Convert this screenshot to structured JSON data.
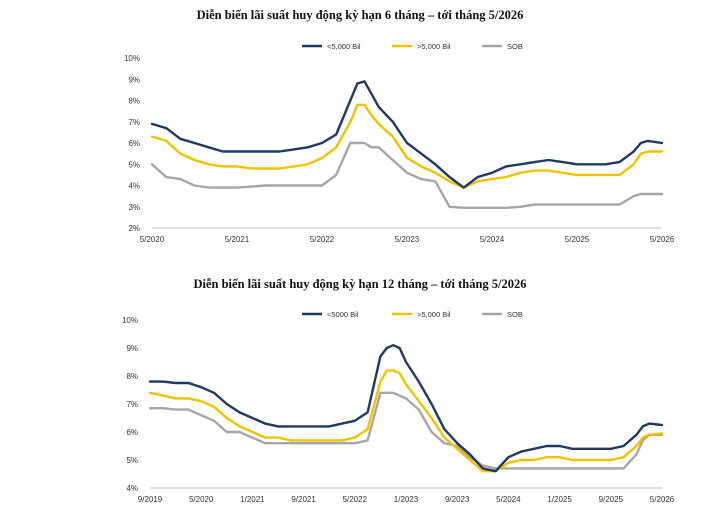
{
  "chart_data": [
    {
      "type": "line",
      "title": "Diễn biến lãi suất huy động kỳ hạn 6 tháng – tới tháng 5/2026",
      "xlabel": "",
      "ylabel": "",
      "x_ticks": [
        "5/2020",
        "5/2021",
        "5/2022",
        "5/2023",
        "5/2024",
        "5/2025",
        "5/2026"
      ],
      "y_ticks": [
        "2%",
        "3%",
        "4%",
        "5%",
        "6%",
        "7%",
        "8%",
        "9%",
        "10%"
      ],
      "ylim": [
        2,
        10
      ],
      "xlim": [
        "2020-05",
        "2026-05"
      ],
      "legend_position": "top-center",
      "grid": false,
      "x": [
        "2020-05",
        "2020-07",
        "2020-09",
        "2020-11",
        "2021-01",
        "2021-03",
        "2021-05",
        "2021-07",
        "2021-09",
        "2021-11",
        "2022-01",
        "2022-03",
        "2022-05",
        "2022-07",
        "2022-09",
        "2022-10",
        "2022-11",
        "2022-12",
        "2023-01",
        "2023-03",
        "2023-05",
        "2023-07",
        "2023-09",
        "2023-11",
        "2024-01",
        "2024-03",
        "2024-05",
        "2024-07",
        "2024-09",
        "2024-11",
        "2025-01",
        "2025-03",
        "2025-05",
        "2025-07",
        "2025-09",
        "2025-11",
        "2026-01",
        "2026-02",
        "2026-03",
        "2026-05"
      ],
      "series": [
        {
          "name": "<5,000 Bil",
          "color": "#1f3864",
          "values": [
            6.9,
            6.7,
            6.2,
            6.0,
            5.8,
            5.6,
            5.6,
            5.6,
            5.6,
            5.6,
            5.7,
            5.8,
            6.0,
            6.4,
            8.0,
            8.8,
            8.9,
            8.3,
            7.7,
            7.0,
            6.0,
            5.5,
            5.0,
            4.4,
            3.9,
            4.4,
            4.6,
            4.9,
            5.0,
            5.1,
            5.2,
            5.1,
            5.0,
            5.0,
            5.0,
            5.1,
            5.6,
            6.0,
            6.1,
            6.0
          ]
        },
        {
          "name": ">5,000 Bil",
          "color": "#f2c200",
          "values": [
            6.3,
            6.1,
            5.5,
            5.2,
            5.0,
            4.9,
            4.9,
            4.8,
            4.8,
            4.8,
            4.9,
            5.0,
            5.3,
            5.8,
            7.0,
            7.8,
            7.8,
            7.3,
            6.9,
            6.3,
            5.3,
            4.9,
            4.6,
            4.2,
            3.9,
            4.2,
            4.3,
            4.4,
            4.6,
            4.7,
            4.7,
            4.6,
            4.5,
            4.5,
            4.5,
            4.5,
            5.0,
            5.5,
            5.6,
            5.6
          ]
        },
        {
          "name": "SOB",
          "color": "#a6a6a6",
          "values": [
            5.0,
            4.4,
            4.3,
            4.0,
            3.9,
            3.9,
            3.9,
            3.95,
            4.0,
            4.0,
            4.0,
            4.0,
            4.0,
            4.5,
            6.0,
            6.0,
            6.0,
            5.8,
            5.8,
            5.2,
            4.6,
            4.3,
            4.2,
            3.0,
            2.95,
            2.95,
            2.95,
            2.95,
            3.0,
            3.1,
            3.1,
            3.1,
            3.1,
            3.1,
            3.1,
            3.1,
            3.5,
            3.6,
            3.6,
            3.6
          ]
        }
      ]
    },
    {
      "type": "line",
      "title": "Diễn biến lãi suất huy động kỳ hạn 12 tháng – tới tháng 5/2026",
      "xlabel": "",
      "ylabel": "",
      "x_ticks": [
        "9/2019",
        "5/2020",
        "1/2021",
        "9/2021",
        "5/2022",
        "1/2023",
        "9/2023",
        "5/2024",
        "1/2025",
        "9/2025",
        "5/2026"
      ],
      "y_ticks": [
        "4%",
        "5%",
        "6%",
        "7%",
        "8%",
        "9%",
        "10%"
      ],
      "ylim": [
        4,
        10
      ],
      "xlim": [
        "2019-09",
        "2026-05"
      ],
      "legend_position": "top-center",
      "grid": false,
      "x": [
        "2019-09",
        "2019-11",
        "2020-01",
        "2020-03",
        "2020-05",
        "2020-07",
        "2020-09",
        "2020-11",
        "2021-01",
        "2021-03",
        "2021-05",
        "2021-07",
        "2021-09",
        "2021-11",
        "2022-01",
        "2022-03",
        "2022-05",
        "2022-07",
        "2022-09",
        "2022-10",
        "2022-11",
        "2022-12",
        "2023-01",
        "2023-03",
        "2023-05",
        "2023-07",
        "2023-09",
        "2023-11",
        "2024-01",
        "2024-03",
        "2024-05",
        "2024-07",
        "2024-09",
        "2024-11",
        "2025-01",
        "2025-03",
        "2025-05",
        "2025-07",
        "2025-09",
        "2025-11",
        "2026-01",
        "2026-02",
        "2026-03",
        "2026-05"
      ],
      "series": [
        {
          "name": "<5000 Bil",
          "color": "#1f3864",
          "values": [
            7.8,
            7.8,
            7.75,
            7.75,
            7.6,
            7.4,
            7.0,
            6.7,
            6.5,
            6.3,
            6.2,
            6.2,
            6.2,
            6.2,
            6.2,
            6.3,
            6.4,
            6.7,
            8.7,
            9.0,
            9.1,
            9.0,
            8.5,
            7.8,
            7.0,
            6.1,
            5.6,
            5.2,
            4.7,
            4.6,
            5.1,
            5.3,
            5.4,
            5.5,
            5.5,
            5.4,
            5.4,
            5.4,
            5.4,
            5.5,
            5.9,
            6.2,
            6.3,
            6.25
          ]
        },
        {
          "name": ">5,000 Bil",
          "color": "#f2c200",
          "values": [
            7.4,
            7.3,
            7.2,
            7.2,
            7.1,
            6.9,
            6.5,
            6.2,
            6.0,
            5.8,
            5.8,
            5.7,
            5.7,
            5.7,
            5.7,
            5.7,
            5.8,
            6.1,
            7.8,
            8.2,
            8.2,
            8.1,
            7.7,
            7.1,
            6.5,
            5.8,
            5.4,
            5.0,
            4.6,
            4.6,
            4.9,
            5.0,
            5.0,
            5.1,
            5.1,
            5.0,
            5.0,
            5.0,
            5.0,
            5.1,
            5.5,
            5.8,
            5.9,
            5.95
          ]
        },
        {
          "name": "SOB",
          "color": "#a6a6a6",
          "values": [
            6.85,
            6.85,
            6.8,
            6.8,
            6.6,
            6.4,
            6.0,
            6.0,
            5.8,
            5.6,
            5.6,
            5.6,
            5.6,
            5.6,
            5.6,
            5.6,
            5.6,
            5.7,
            7.4,
            7.4,
            7.4,
            7.3,
            7.2,
            6.8,
            6.0,
            5.6,
            5.5,
            5.1,
            4.8,
            4.7,
            4.7,
            4.7,
            4.7,
            4.7,
            4.7,
            4.7,
            4.7,
            4.7,
            4.7,
            4.7,
            5.2,
            5.7,
            5.9,
            5.9
          ]
        }
      ]
    }
  ]
}
